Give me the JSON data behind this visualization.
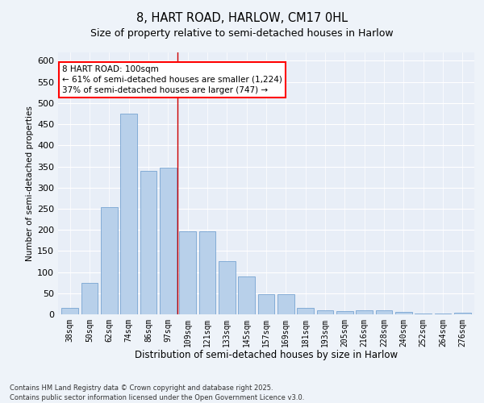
{
  "title": "8, HART ROAD, HARLOW, CM17 0HL",
  "subtitle": "Size of property relative to semi-detached houses in Harlow",
  "xlabel": "Distribution of semi-detached houses by size in Harlow",
  "ylabel": "Number of semi-detached properties",
  "categories": [
    "38sqm",
    "50sqm",
    "62sqm",
    "74sqm",
    "86sqm",
    "97sqm",
    "109sqm",
    "121sqm",
    "133sqm",
    "145sqm",
    "157sqm",
    "169sqm",
    "181sqm",
    "193sqm",
    "205sqm",
    "216sqm",
    "228sqm",
    "240sqm",
    "252sqm",
    "264sqm",
    "276sqm"
  ],
  "values": [
    15,
    75,
    253,
    475,
    340,
    348,
    196,
    196,
    125,
    90,
    47,
    47,
    15,
    10,
    7,
    9,
    10,
    5,
    2,
    2,
    4
  ],
  "bar_color": "#b8d0ea",
  "bar_edge_color": "#6699cc",
  "vline_x": 5.5,
  "vline_color": "#cc0000",
  "annotation_text": "8 HART ROAD: 100sqm\n← 61% of semi-detached houses are smaller (1,224)\n37% of semi-detached houses are larger (747) →",
  "ylim": [
    0,
    620
  ],
  "yticks": [
    0,
    50,
    100,
    150,
    200,
    250,
    300,
    350,
    400,
    450,
    500,
    550,
    600
  ],
  "footnote": "Contains HM Land Registry data © Crown copyright and database right 2025.\nContains public sector information licensed under the Open Government Licence v3.0.",
  "bg_color": "#e8eef7",
  "fig_bg_color": "#eef3f9"
}
